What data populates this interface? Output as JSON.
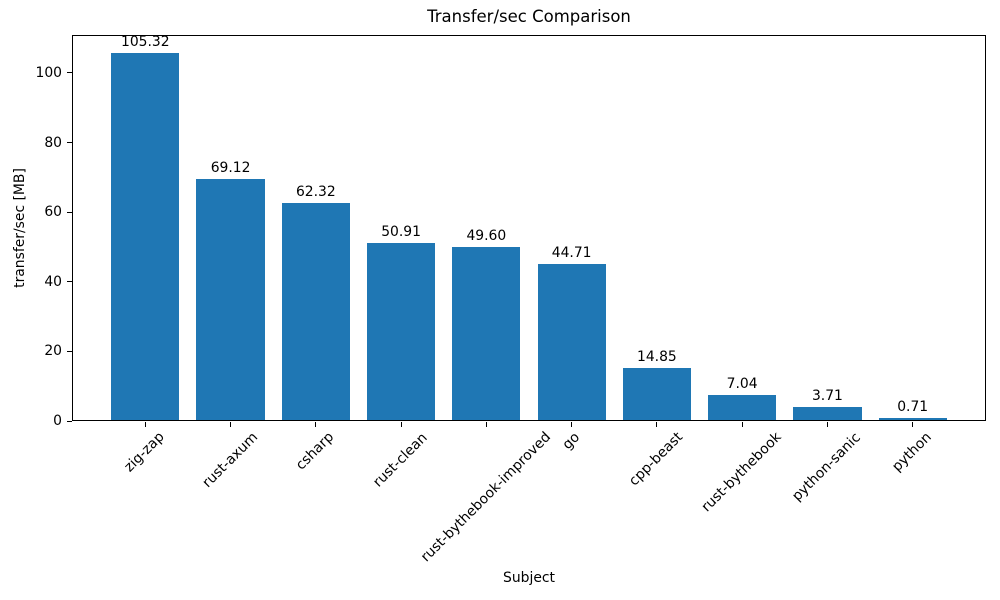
{
  "figure": {
    "background": "#ffffff"
  },
  "chart_data": {
    "type": "bar",
    "title": "Transfer/sec Comparison",
    "xlabel": "Subject",
    "ylabel": "transfer/sec [MB]",
    "categories": [
      "zig-zap",
      "rust-axum",
      "csharp",
      "rust-clean",
      "rust-bythebook-improved",
      "go",
      "cpp-beast",
      "rust-bythebook",
      "python-sanic",
      "python"
    ],
    "values": [
      105.32,
      69.12,
      62.32,
      50.91,
      49.6,
      44.71,
      14.85,
      7.04,
      3.71,
      0.71
    ],
    "value_labels": [
      "105.32",
      "69.12",
      "62.32",
      "50.91",
      "49.60",
      "44.71",
      "14.85",
      "7.04",
      "3.71",
      "0.71"
    ],
    "yticks": [
      0,
      20,
      40,
      60,
      80,
      100
    ],
    "ylim": [
      0,
      110.9
    ],
    "bar_color": "#1f77b4",
    "axis_color": "#000000",
    "text_color": "#000000",
    "bar_width_frac": 0.8,
    "x_outer_pad": 0.86,
    "x_tick_rotation_deg": 45,
    "grid": false,
    "legend": null
  }
}
